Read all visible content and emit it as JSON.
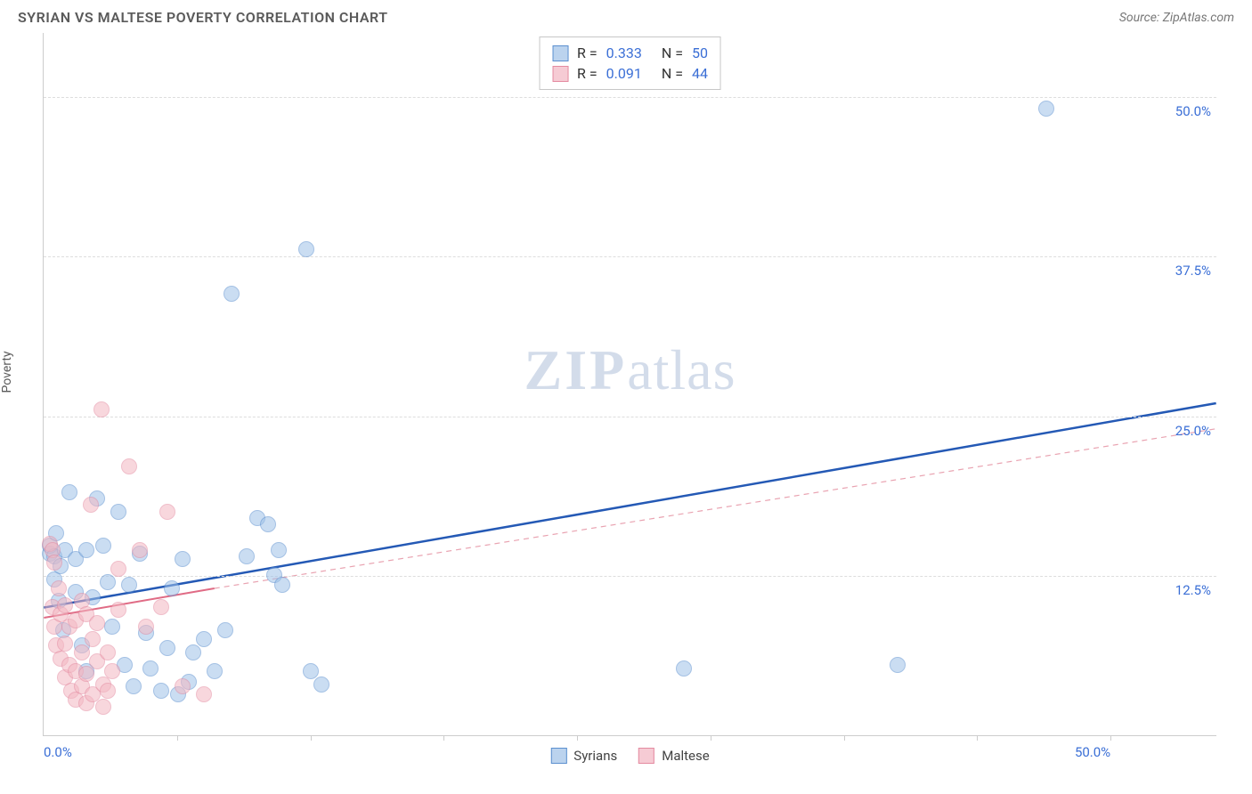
{
  "title": "SYRIAN VS MALTESE POVERTY CORRELATION CHART",
  "source_label": "Source: ZipAtlas.com",
  "ylabel": "Poverty",
  "watermark_bold": "ZIP",
  "watermark_rest": "atlas",
  "chart": {
    "type": "scatter",
    "x_min": 0,
    "x_max": 55,
    "y_min": 0,
    "y_max": 55,
    "x_tick_labels": [
      {
        "pos": 0,
        "label": "0.0%"
      },
      {
        "pos": 50,
        "label": "50.0%"
      }
    ],
    "x_minor_ticks": [
      6.25,
      12.5,
      18.75,
      25,
      31.25,
      37.5,
      43.75,
      50
    ],
    "y_ticks": [
      {
        "pos": 12.5,
        "label": "12.5%"
      },
      {
        "pos": 25,
        "label": "25.0%"
      },
      {
        "pos": 37.5,
        "label": "37.5%"
      },
      {
        "pos": 50,
        "label": "50.0%"
      }
    ],
    "grid_color": "#dddddd",
    "axis_color": "#cccccc",
    "background": "#ffffff",
    "marker_radius": 9,
    "marker_border": 1.5,
    "series": [
      {
        "name": "Syrians",
        "fill": "#9fc2e8",
        "stroke": "#5b8fcf",
        "fill_opacity": 0.55,
        "trend": {
          "x1": 0,
          "y1": 10,
          "x2": 55,
          "y2": 26.0,
          "color": "#2459b5",
          "width": 2.5,
          "dash": "none",
          "dash_x2": 55,
          "dash_y2": 26.0,
          "solid_until_x": 55
        },
        "points": [
          [
            0.3,
            14.2
          ],
          [
            0.3,
            14.8
          ],
          [
            0.5,
            14.0
          ],
          [
            0.5,
            12.2
          ],
          [
            0.6,
            15.8
          ],
          [
            0.7,
            10.5
          ],
          [
            0.8,
            13.2
          ],
          [
            0.9,
            8.2
          ],
          [
            1.0,
            14.5
          ],
          [
            1.2,
            19.0
          ],
          [
            1.5,
            11.2
          ],
          [
            1.5,
            13.8
          ],
          [
            1.8,
            7.0
          ],
          [
            2.0,
            14.5
          ],
          [
            2.0,
            5.0
          ],
          [
            2.3,
            10.8
          ],
          [
            2.5,
            18.5
          ],
          [
            2.8,
            14.8
          ],
          [
            3.0,
            12.0
          ],
          [
            3.2,
            8.5
          ],
          [
            3.5,
            17.5
          ],
          [
            3.8,
            5.5
          ],
          [
            4.0,
            11.8
          ],
          [
            4.2,
            3.8
          ],
          [
            4.5,
            14.2
          ],
          [
            4.8,
            8.0
          ],
          [
            5.0,
            5.2
          ],
          [
            5.5,
            3.5
          ],
          [
            5.8,
            6.8
          ],
          [
            6.0,
            11.5
          ],
          [
            6.3,
            3.2
          ],
          [
            6.5,
            13.8
          ],
          [
            7.0,
            6.5
          ],
          [
            7.5,
            7.5
          ],
          [
            8.0,
            5.0
          ],
          [
            8.5,
            8.2
          ],
          [
            9.5,
            14.0
          ],
          [
            10.0,
            17.0
          ],
          [
            10.5,
            16.5
          ],
          [
            10.8,
            12.5
          ],
          [
            11.0,
            14.5
          ],
          [
            11.2,
            11.8
          ],
          [
            12.5,
            5.0
          ],
          [
            13.0,
            4.0
          ],
          [
            8.8,
            34.5
          ],
          [
            12.3,
            38.0
          ],
          [
            30.0,
            5.2
          ],
          [
            40.0,
            5.5
          ],
          [
            47.0,
            49.0
          ],
          [
            6.8,
            4.2
          ]
        ]
      },
      {
        "name": "Maltese",
        "fill": "#f3b7c2",
        "stroke": "#e48aa0",
        "fill_opacity": 0.55,
        "trend": {
          "x1": 0,
          "y1": 9.2,
          "x2": 8,
          "y2": 11.5,
          "color": "#e06b85",
          "width": 2,
          "dash": "none",
          "dash_x2": 55,
          "dash_y2": 24.0,
          "dash_color": "#e9a3b1"
        },
        "points": [
          [
            0.3,
            15.0
          ],
          [
            0.4,
            14.5
          ],
          [
            0.4,
            10.0
          ],
          [
            0.5,
            13.5
          ],
          [
            0.5,
            8.5
          ],
          [
            0.6,
            7.0
          ],
          [
            0.7,
            11.5
          ],
          [
            0.8,
            9.5
          ],
          [
            0.8,
            6.0
          ],
          [
            1.0,
            10.2
          ],
          [
            1.0,
            7.2
          ],
          [
            1.0,
            4.5
          ],
          [
            1.2,
            8.5
          ],
          [
            1.2,
            5.5
          ],
          [
            1.3,
            3.5
          ],
          [
            1.5,
            9.0
          ],
          [
            1.5,
            5.0
          ],
          [
            1.5,
            2.8
          ],
          [
            1.8,
            10.5
          ],
          [
            1.8,
            6.5
          ],
          [
            1.8,
            3.8
          ],
          [
            2.0,
            9.5
          ],
          [
            2.0,
            4.8
          ],
          [
            2.0,
            2.5
          ],
          [
            2.3,
            7.5
          ],
          [
            2.3,
            3.2
          ],
          [
            2.5,
            8.8
          ],
          [
            2.5,
            5.8
          ],
          [
            2.8,
            4.0
          ],
          [
            2.8,
            2.2
          ],
          [
            3.0,
            6.5
          ],
          [
            3.0,
            3.5
          ],
          [
            3.2,
            5.0
          ],
          [
            3.5,
            9.8
          ],
          [
            3.5,
            13.0
          ],
          [
            2.2,
            18.0
          ],
          [
            2.7,
            25.5
          ],
          [
            4.5,
            14.5
          ],
          [
            4.8,
            8.5
          ],
          [
            5.5,
            10.0
          ],
          [
            5.8,
            17.5
          ],
          [
            7.5,
            3.2
          ],
          [
            6.5,
            3.8
          ],
          [
            4.0,
            21.0
          ]
        ]
      }
    ],
    "stats": [
      {
        "swatch_fill": "#bbd3ee",
        "swatch_stroke": "#5b8fcf",
        "r": "0.333",
        "n": "50"
      },
      {
        "swatch_fill": "#f6cbd4",
        "swatch_stroke": "#e48aa0",
        "r": "0.091",
        "n": "44"
      }
    ],
    "legend": [
      {
        "swatch_fill": "#bbd3ee",
        "swatch_stroke": "#5b8fcf",
        "label": "Syrians"
      },
      {
        "swatch_fill": "#f6cbd4",
        "swatch_stroke": "#e48aa0",
        "label": "Maltese"
      }
    ]
  }
}
